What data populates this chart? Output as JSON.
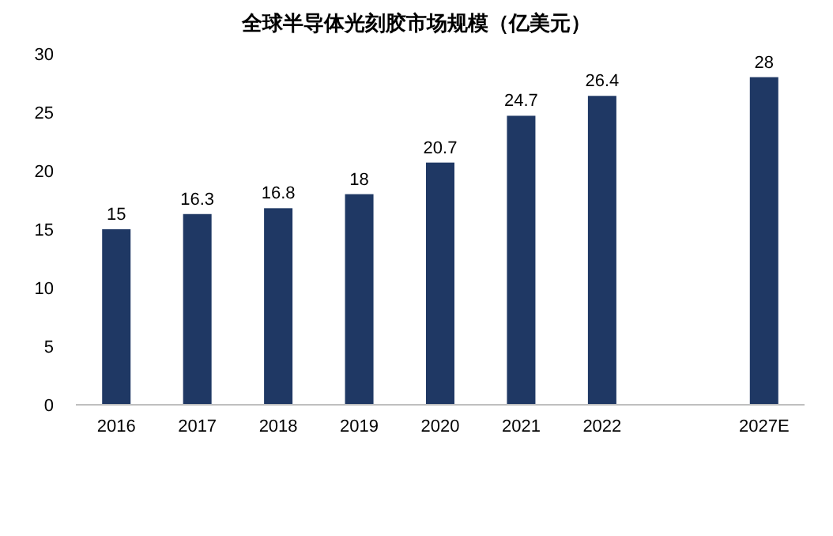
{
  "chart_data": {
    "type": "bar",
    "title": "全球半导体光刻胶市场规模（亿美元）",
    "categories": [
      "2016",
      "2017",
      "2018",
      "2019",
      "2020",
      "2021",
      "2022",
      null,
      "2027E"
    ],
    "values": [
      15,
      16.3,
      16.8,
      18,
      20.7,
      24.7,
      26.4,
      null,
      28
    ],
    "color": "#1f3864",
    "ylim": [
      0,
      30
    ],
    "yticks": [
      0,
      5,
      10,
      15,
      20,
      25,
      30
    ],
    "grid": false,
    "data_labels": true
  }
}
